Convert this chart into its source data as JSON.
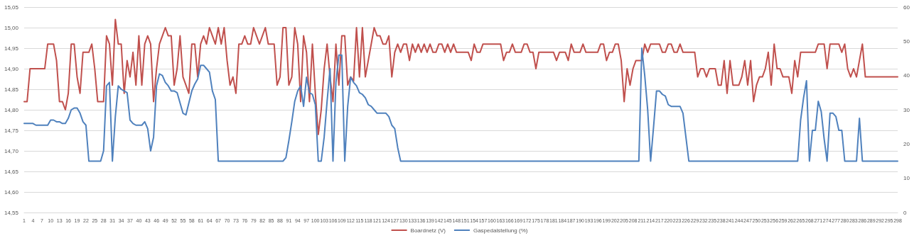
{
  "chart_data": {
    "type": "line",
    "categories": [
      "1",
      null,
      null,
      "4",
      null,
      null,
      "7",
      null,
      null,
      "10",
      null,
      null,
      "13",
      null,
      null,
      "16",
      null,
      null,
      "19",
      null,
      null,
      "22",
      null,
      null,
      "25",
      null,
      null,
      "28",
      null,
      null,
      "31",
      null,
      null,
      "34",
      null,
      null,
      "37",
      null,
      null,
      "40",
      null,
      null,
      "43",
      null,
      null,
      "46",
      null,
      null,
      "49",
      null,
      null,
      "52",
      null,
      null,
      "55",
      null,
      null,
      "58",
      null,
      null,
      "61",
      null,
      null,
      "64",
      null,
      null,
      "67",
      null,
      null,
      "70",
      null,
      null,
      "73",
      null,
      null,
      "76",
      null,
      null,
      "79",
      null,
      null,
      "82",
      null,
      null,
      "85",
      null,
      null,
      "88",
      null,
      null,
      "91",
      null,
      null,
      "94",
      null,
      null,
      "97",
      null,
      null,
      "100",
      null,
      null,
      "103",
      null,
      null,
      "106",
      null,
      null,
      "109",
      null,
      null,
      "112",
      null,
      null,
      "115",
      null,
      null,
      "118",
      null,
      null,
      "121",
      null,
      null,
      "124",
      null,
      null,
      "127",
      null,
      null,
      "130",
      null,
      null,
      "133",
      null,
      null,
      "136",
      null,
      null,
      "139",
      null,
      null,
      "142",
      null,
      null,
      "145",
      null,
      null,
      "148",
      null,
      null,
      "151",
      null,
      null,
      "154",
      null,
      null,
      "157",
      null,
      null,
      "160",
      null,
      null,
      "163",
      null,
      null,
      "166",
      null,
      null,
      "169",
      null,
      null,
      "172",
      null,
      null,
      "175",
      null,
      null,
      "178",
      null,
      null,
      "181",
      null,
      null,
      "184",
      null,
      null,
      "187",
      null,
      null,
      "190",
      null,
      null,
      "193",
      null,
      null,
      "196",
      null,
      null,
      "199",
      null,
      null,
      "202",
      null,
      null,
      "205",
      null,
      null,
      "208",
      null,
      null,
      "211",
      null,
      null,
      "214",
      null,
      null,
      "217",
      null,
      null,
      "220",
      null,
      null,
      "223",
      null,
      null,
      "226",
      null,
      null,
      "229",
      null,
      null,
      "232",
      null,
      null,
      "235",
      null,
      null,
      "238",
      null,
      null,
      "241",
      null,
      null,
      "244",
      null,
      null,
      "247",
      null,
      null,
      "250",
      null,
      null,
      "253",
      null,
      null,
      "256",
      null,
      null,
      "259",
      null,
      null,
      "262",
      null,
      null,
      "265",
      null,
      null,
      "268",
      null,
      null,
      "271",
      null,
      null,
      "274",
      null,
      null,
      "277",
      null,
      null,
      "280",
      null,
      null,
      "283",
      null,
      null,
      "286",
      null,
      null,
      "289",
      null,
      null,
      "292",
      null,
      null,
      "295",
      null,
      null,
      "298"
    ],
    "series": [
      {
        "name": "Boardnetz (V)",
        "color": "#c0504d",
        "values": [
          14.82,
          14.82,
          14.9,
          14.9,
          14.9,
          14.9,
          14.9,
          14.9,
          14.96,
          14.96,
          14.96,
          14.92,
          14.82,
          14.82,
          14.8,
          14.84,
          14.96,
          14.96,
          14.88,
          14.84,
          14.94,
          14.94,
          14.94,
          14.96,
          14.9,
          14.82,
          14.82,
          14.82,
          14.98,
          14.96,
          14.86,
          15.02,
          14.96,
          14.96,
          14.84,
          14.92,
          14.88,
          14.94,
          14.86,
          14.98,
          14.86,
          14.96,
          14.98,
          14.96,
          14.82,
          14.9,
          14.96,
          14.98,
          15.0,
          14.98,
          14.98,
          14.86,
          14.9,
          14.98,
          14.88,
          14.86,
          14.84,
          14.96,
          14.96,
          14.88,
          14.96,
          14.98,
          14.96,
          15.0,
          14.98,
          14.96,
          15.0,
          14.96,
          15.0,
          14.92,
          14.86,
          14.88,
          14.84,
          14.96,
          14.96,
          14.98,
          14.96,
          14.96,
          15.0,
          14.98,
          14.96,
          14.98,
          15.0,
          14.96,
          14.96,
          14.96,
          14.86,
          14.88,
          15.0,
          15.0,
          14.86,
          14.88,
          15.0,
          14.96,
          14.82,
          14.98,
          14.94,
          14.82,
          14.96,
          14.84,
          14.74,
          14.8,
          14.9,
          14.96,
          14.88,
          14.82,
          14.96,
          14.86,
          14.98,
          14.98,
          14.86,
          14.88,
          14.87,
          15.0,
          14.88,
          15.0,
          14.88,
          14.92,
          14.96,
          15.0,
          14.98,
          14.98,
          14.96,
          14.96,
          14.98,
          14.88,
          14.94,
          14.96,
          14.94,
          14.96,
          14.96,
          14.92,
          14.96,
          14.94,
          14.96,
          14.94,
          14.96,
          14.94,
          14.96,
          14.94,
          14.94,
          14.96,
          14.96,
          14.94,
          14.96,
          14.94,
          14.96,
          14.94,
          14.94,
          14.94,
          14.94,
          14.94,
          14.92,
          14.96,
          14.94,
          14.94,
          14.96,
          14.96,
          14.96,
          14.96,
          14.96,
          14.96,
          14.96,
          14.92,
          14.94,
          14.94,
          14.96,
          14.94,
          14.94,
          14.94,
          14.96,
          14.96,
          14.94,
          14.94,
          14.9,
          14.94,
          14.94,
          14.94,
          14.94,
          14.94,
          14.94,
          14.92,
          14.94,
          14.94,
          14.94,
          14.92,
          14.96,
          14.94,
          14.94,
          14.94,
          14.96,
          14.94,
          14.94,
          14.94,
          14.94,
          14.94,
          14.96,
          14.96,
          14.92,
          14.94,
          14.94,
          14.96,
          14.96,
          14.92,
          14.82,
          14.9,
          14.86,
          14.9,
          14.92,
          14.92,
          14.92,
          14.96,
          14.94,
          14.96,
          14.96,
          14.96,
          14.96,
          14.94,
          14.94,
          14.96,
          14.96,
          14.94,
          14.94,
          14.96,
          14.94,
          14.94,
          14.94,
          14.94,
          14.94,
          14.88,
          14.9,
          14.9,
          14.88,
          14.9,
          14.9,
          14.9,
          14.86,
          14.86,
          14.92,
          14.84,
          14.92,
          14.86,
          14.86,
          14.86,
          14.88,
          14.92,
          14.86,
          14.92,
          14.82,
          14.86,
          14.88,
          14.88,
          14.9,
          14.94,
          14.86,
          14.96,
          14.9,
          14.9,
          14.88,
          14.88,
          14.88,
          14.84,
          14.92,
          14.88,
          14.94,
          14.94,
          14.94,
          14.94,
          14.94,
          14.94,
          14.96,
          14.96,
          14.96,
          14.9,
          14.96,
          14.96,
          14.96,
          14.96,
          14.94,
          14.96,
          14.9,
          14.88,
          14.9,
          14.88,
          14.92,
          14.96,
          14.88,
          14.88,
          14.88,
          14.88,
          14.88,
          14.88,
          14.88,
          14.88,
          14.88,
          14.88,
          14.88,
          14.88
        ]
      },
      {
        "name": "Gaspedalstellung (%)",
        "color": "#4f81bd",
        "axis": "y2",
        "values": [
          26,
          26,
          26,
          26,
          25.5,
          25.5,
          25.5,
          25.5,
          25.5,
          27,
          27,
          26.5,
          26.5,
          26,
          26,
          27.5,
          30,
          30.5,
          30.5,
          29,
          26.5,
          25.5,
          15,
          15,
          15,
          15,
          15,
          18,
          37,
          38,
          15,
          28,
          37,
          36,
          35.5,
          35,
          27,
          26,
          25.5,
          25.5,
          25.5,
          26.5,
          24.5,
          18,
          22,
          37,
          40.5,
          40,
          38,
          37,
          35.5,
          35.5,
          35,
          32,
          29,
          28.5,
          32,
          35.5,
          37.5,
          39,
          43,
          43,
          42,
          41,
          35.5,
          33,
          15,
          15,
          15,
          15,
          15,
          15,
          15,
          15,
          15,
          15,
          15,
          15,
          15,
          15,
          15,
          15,
          15,
          15,
          15,
          15,
          15,
          15,
          15,
          16,
          21,
          26.5,
          32.5,
          35.5,
          37,
          31,
          39.5,
          35,
          34.5,
          31.5,
          15,
          15,
          22,
          32.5,
          42,
          15,
          38,
          46,
          46,
          15,
          31,
          39.5,
          38,
          37,
          35,
          34.5,
          33.5,
          31.5,
          31,
          30,
          29,
          29,
          29,
          29,
          28,
          25.5,
          24.5,
          19,
          15,
          15,
          15,
          15,
          15,
          15,
          15,
          15,
          15,
          15,
          15,
          15,
          15,
          15,
          15,
          15,
          15,
          15,
          15,
          15,
          15,
          15,
          15,
          15,
          15,
          15,
          15,
          15,
          15,
          15,
          15,
          15,
          15,
          15,
          15,
          15,
          15,
          15,
          15,
          15,
          15,
          15,
          15,
          15,
          15,
          15,
          15,
          15,
          15,
          15,
          15,
          15,
          15,
          15,
          15,
          15,
          15,
          15,
          15,
          15,
          15,
          15,
          15,
          15,
          15,
          15,
          15,
          15,
          15,
          15,
          15,
          15,
          15,
          15,
          15,
          15,
          15,
          15,
          15,
          15,
          15,
          15,
          48,
          40,
          30,
          15,
          25,
          35.5,
          35.5,
          34.5,
          34,
          31.5,
          31,
          31,
          31,
          31,
          29,
          22,
          15,
          15,
          15,
          15,
          15,
          15,
          15,
          15,
          15,
          15,
          15,
          15,
          15,
          15,
          15,
          15,
          15,
          15,
          15,
          15,
          15,
          15,
          15,
          15,
          15,
          15,
          15,
          15,
          15,
          15,
          15,
          15,
          15,
          15,
          15,
          15,
          15,
          15,
          27,
          33.5,
          38.5,
          15,
          24,
          24,
          32.5,
          29.5,
          21.5,
          15,
          29,
          29,
          28,
          24,
          24,
          15,
          15,
          15,
          15,
          15,
          27.5,
          15,
          15,
          15,
          15,
          15,
          15,
          15,
          15,
          15,
          15,
          15,
          15,
          15
        ]
      }
    ],
    "ylim": [
      14.55,
      15.05
    ],
    "yticks": [
      {
        "value": 14.55,
        "label": "14,55"
      },
      {
        "value": 14.6,
        "label": "14,60"
      },
      {
        "value": 14.65,
        "label": "14,65"
      },
      {
        "value": 14.7,
        "label": "14,70"
      },
      {
        "value": 14.75,
        "label": "14,75"
      },
      {
        "value": 14.8,
        "label": "14,80"
      },
      {
        "value": 14.85,
        "label": "14,85"
      },
      {
        "value": 14.9,
        "label": "14,90"
      },
      {
        "value": 14.95,
        "label": "14,95"
      },
      {
        "value": 15.0,
        "label": "15,00"
      },
      {
        "value": 15.05,
        "label": "15,05"
      }
    ],
    "y2lim": [
      0,
      60
    ],
    "y2ticks": [
      0,
      10,
      20,
      30,
      40,
      50,
      60
    ],
    "grid": "y",
    "legend": "bottom",
    "marker": "none",
    "line_style": "solid"
  }
}
